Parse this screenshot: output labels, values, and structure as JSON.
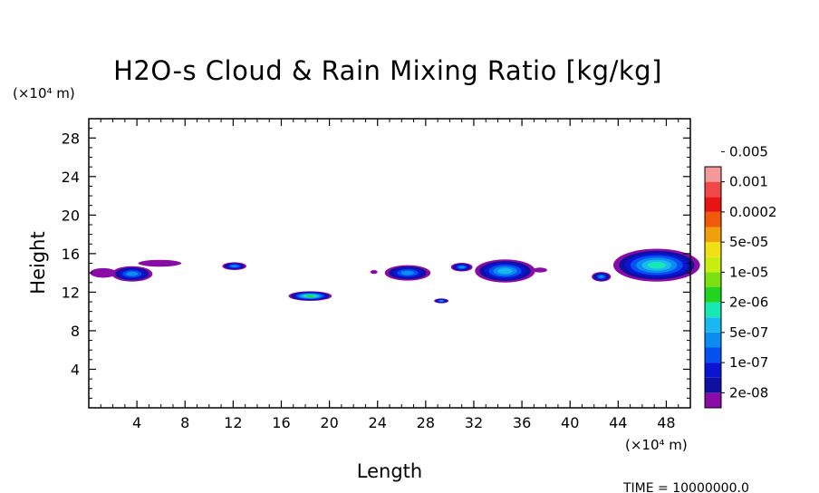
{
  "chart_data": {
    "type": "heatmap",
    "title": "H2O-s Cloud & Rain Mixing Ratio [kg/kg]",
    "xlabel": "Length",
    "ylabel": "Height",
    "x_unit": "(×10⁴ m)",
    "y_unit": "(×10⁴ m)",
    "xlim": [
      0,
      50
    ],
    "ylim": [
      0,
      30
    ],
    "x_ticks": [
      4,
      8,
      12,
      16,
      20,
      24,
      28,
      32,
      36,
      40,
      44,
      48
    ],
    "y_ticks": [
      4,
      8,
      12,
      16,
      20,
      24,
      28
    ],
    "x_tick_labels": [
      "4",
      "8",
      "12",
      "16",
      "20",
      "24",
      "28",
      "32",
      "36",
      "40",
      "44",
      "48"
    ],
    "y_tick_labels": [
      "4",
      "8",
      "12",
      "16",
      "20",
      "24",
      "28"
    ],
    "time_label": "TIME = 10000000.0",
    "colorbar": {
      "colors": [
        "#8a0ca6",
        "#1010a0",
        "#0a14d2",
        "#0550ee",
        "#0a8cf0",
        "#1ab8f0",
        "#18e8b4",
        "#22d422",
        "#7ae012",
        "#c8ee10",
        "#f0e014",
        "#f0a00a",
        "#f05a0a",
        "#e81414",
        "#f04848",
        "#f49a9a"
      ],
      "labels": [
        "2e-08",
        "1e-07",
        "5e-07",
        "2e-06",
        "1e-05",
        "5e-05",
        "0.0002",
        "0.001",
        "0.005"
      ]
    },
    "cells": [
      {
        "name": "cell-a",
        "x": 1.2,
        "y": 14.0,
        "rx": 1.1,
        "ry": 0.5,
        "level": 0
      },
      {
        "name": "cell-b",
        "x": 3.6,
        "y": 13.9,
        "rx": 1.7,
        "ry": 0.8,
        "level": 4
      },
      {
        "name": "cell-c",
        "x": 5.9,
        "y": 15.0,
        "rx": 1.8,
        "ry": 0.35,
        "level": 0
      },
      {
        "name": "cell-d",
        "x": 12.1,
        "y": 14.7,
        "rx": 1.0,
        "ry": 0.4,
        "level": 4
      },
      {
        "name": "cell-e",
        "x": 18.4,
        "y": 11.6,
        "rx": 1.8,
        "ry": 0.5,
        "level": 7
      },
      {
        "name": "cell-f",
        "x": 23.7,
        "y": 14.1,
        "rx": 0.3,
        "ry": 0.2,
        "level": 0
      },
      {
        "name": "cell-g",
        "x": 26.5,
        "y": 14.0,
        "rx": 1.9,
        "ry": 0.8,
        "level": 4
      },
      {
        "name": "cell-h",
        "x": 29.3,
        "y": 11.1,
        "rx": 0.6,
        "ry": 0.25,
        "level": 4
      },
      {
        "name": "cell-i",
        "x": 31.0,
        "y": 14.6,
        "rx": 0.9,
        "ry": 0.45,
        "level": 4
      },
      {
        "name": "cell-j",
        "x": 34.6,
        "y": 14.2,
        "rx": 2.5,
        "ry": 1.2,
        "level": 5
      },
      {
        "name": "cell-k",
        "x": 37.5,
        "y": 14.3,
        "rx": 0.6,
        "ry": 0.25,
        "level": 0
      },
      {
        "name": "cell-l",
        "x": 42.6,
        "y": 13.6,
        "rx": 0.8,
        "ry": 0.5,
        "level": 4
      },
      {
        "name": "cell-m",
        "x": 47.2,
        "y": 14.8,
        "rx": 3.6,
        "ry": 1.7,
        "level": 6
      }
    ]
  }
}
